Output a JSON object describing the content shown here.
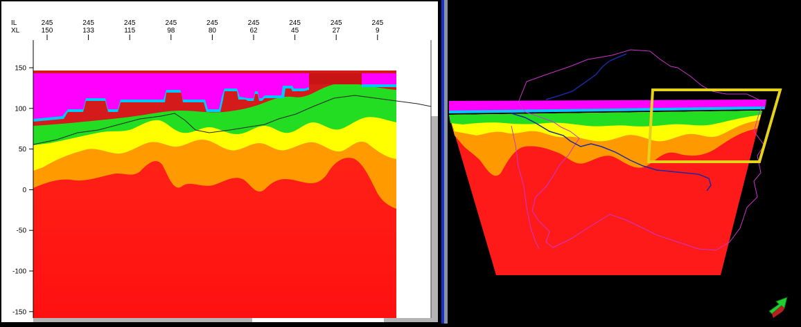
{
  "section_view": {
    "header_row_labels": [
      "IL",
      "XL"
    ],
    "columns": [
      {
        "il": "245",
        "xl": "150"
      },
      {
        "il": "245",
        "xl": "133"
      },
      {
        "il": "245",
        "xl": "115"
      },
      {
        "il": "245",
        "xl": "98"
      },
      {
        "il": "245",
        "xl": "80"
      },
      {
        "il": "245",
        "xl": "62"
      },
      {
        "il": "245",
        "xl": "45"
      },
      {
        "il": "245",
        "xl": "27"
      },
      {
        "il": "245",
        "xl": "9"
      }
    ],
    "y_ticks": [
      "150",
      "100",
      "50",
      "0",
      "-50",
      "-100",
      "-150"
    ],
    "colors": {
      "magenta": "#ff00ff",
      "cyan": "#00ccff",
      "green": "#22dd22",
      "yellow": "#ffff00",
      "orange": "#ff9900",
      "red": "#ff1a1a",
      "dark_red": "#d41a1a"
    }
  },
  "view_3d": {
    "icons": [
      "orientation-arrow-icon"
    ],
    "colors": {
      "outline": "#cc33cc",
      "river": "#1a2aa0",
      "highlight": "#e6d21a"
    }
  }
}
